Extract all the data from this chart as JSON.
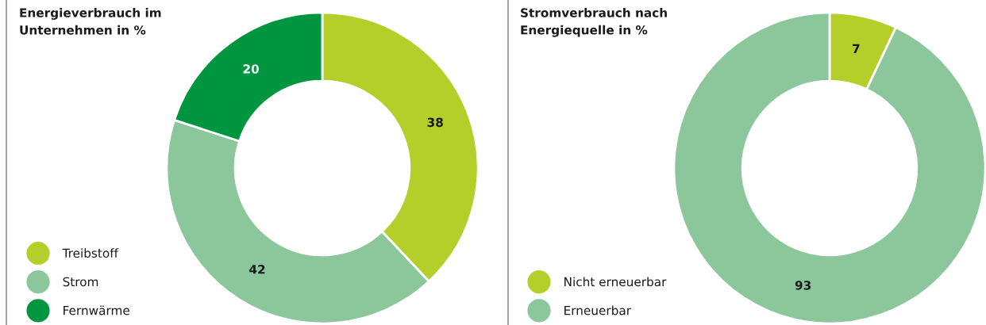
{
  "chart_data": [
    {
      "type": "donut",
      "title": "Energieverbrauch im\nUnternehmen in %",
      "categories": [
        "Treibstoff",
        "Strom",
        "Fernwärme"
      ],
      "values": [
        38,
        42,
        20
      ],
      "colors": [
        "#b5cf2a",
        "#8bc79b",
        "#00963f"
      ],
      "data_labels": true,
      "legend": "bottom left"
    },
    {
      "type": "donut",
      "title": "Stromverbrauch nach\nEnergiequelle in %",
      "categories": [
        "Nicht erneuerbar",
        "Erneuerbar"
      ],
      "values": [
        7,
        93
      ],
      "colors": [
        "#b5cf2a",
        "#8bc79b"
      ],
      "data_labels": true,
      "legend": "bottom left"
    }
  ]
}
